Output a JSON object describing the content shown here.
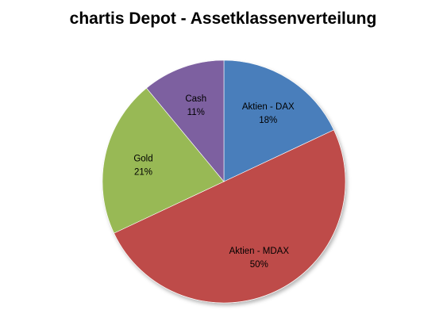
{
  "chart_data": {
    "type": "pie",
    "title": "chartis Depot - Assetklassenverteilung",
    "start_angle_deg": 0,
    "direction": "clockwise",
    "legend": "none",
    "slices": [
      {
        "label": "Aktien - DAX",
        "value": 18,
        "display": "18%",
        "color": "#4a7ebb"
      },
      {
        "label": "Aktien - MDAX",
        "value": 50,
        "display": "50%",
        "color": "#be4b48"
      },
      {
        "label": "Gold",
        "value": 21,
        "display": "21%",
        "color": "#98b954"
      },
      {
        "label": "Cash",
        "value": 11,
        "display": "11%",
        "color": "#7d60a0"
      }
    ]
  }
}
